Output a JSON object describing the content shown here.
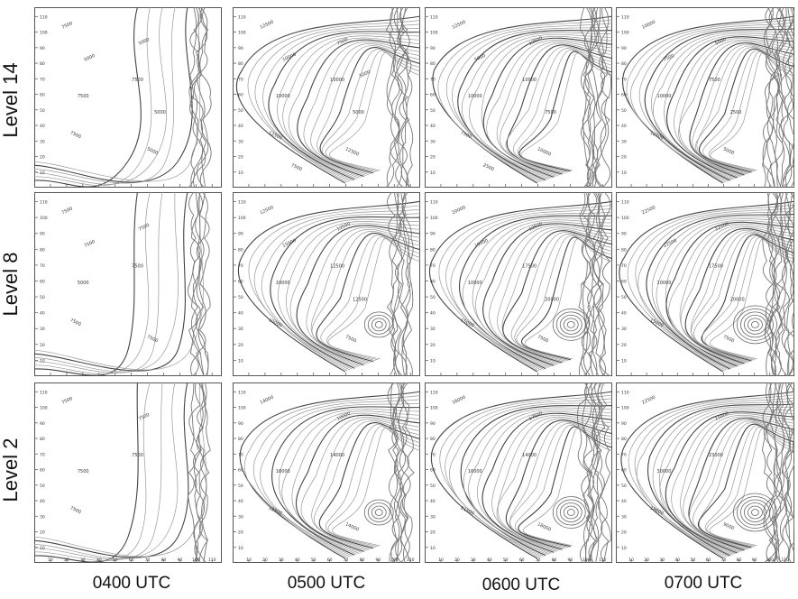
{
  "rows": [
    {
      "label": "Level 14"
    },
    {
      "label": "Level 8"
    },
    {
      "label": "Level 2"
    }
  ],
  "columns": [
    {
      "label": "0400 UTC"
    },
    {
      "label": "0500 UTC"
    },
    {
      "label": "0600 UTC"
    },
    {
      "label": "0700 UTC"
    }
  ],
  "axis_ticks": [
    "10",
    "20",
    "30",
    "40",
    "50",
    "60",
    "70",
    "80",
    "90",
    "100",
    "110"
  ],
  "panels": [
    {
      "row": 0,
      "col": 0,
      "contour_labels": [
        "7500",
        "7500",
        "7500",
        "5000",
        "7500",
        "5000",
        "5000",
        "5000"
      ]
    },
    {
      "row": 0,
      "col": 1,
      "contour_labels": [
        "12500",
        "10000",
        "12500",
        "7500",
        "10000",
        "12500",
        "10000",
        "5000",
        "7500",
        "5000"
      ]
    },
    {
      "row": 0,
      "col": 2,
      "contour_labels": [
        "12500",
        "10000",
        "7500",
        "12500",
        "10000",
        "10000",
        "5000",
        "7500",
        "2500"
      ]
    },
    {
      "row": 0,
      "col": 3,
      "contour_labels": [
        "10000",
        "7500",
        "12500",
        "5000",
        "10000",
        "5000",
        "7500",
        "2500"
      ]
    },
    {
      "row": 1,
      "col": 0,
      "contour_labels": [
        "7500",
        "7500",
        "7500",
        "7500",
        "5000",
        "7500",
        "7500"
      ]
    },
    {
      "row": 1,
      "col": 1,
      "contour_labels": [
        "12500",
        "12500",
        "10000",
        "12500",
        "10000",
        "7500",
        "15000",
        "12500"
      ]
    },
    {
      "row": 1,
      "col": 2,
      "contour_labels": [
        "20000",
        "17500",
        "15000",
        "12500",
        "10000",
        "7500",
        "15000",
        "20000"
      ]
    },
    {
      "row": 1,
      "col": 3,
      "contour_labels": [
        "22500",
        "17500",
        "15000",
        "12500",
        "10000",
        "7500",
        "22500",
        "20000"
      ]
    },
    {
      "row": 2,
      "col": 0,
      "contour_labels": [
        "7500",
        "7500",
        "7500",
        "7500",
        "7500"
      ]
    },
    {
      "row": 2,
      "col": 1,
      "contour_labels": [
        "14000",
        "14000",
        "12500",
        "10000",
        "16000",
        "14000"
      ]
    },
    {
      "row": 2,
      "col": 2,
      "contour_labels": [
        "16000",
        "14000",
        "21500",
        "17500",
        "16000",
        "18000"
      ]
    },
    {
      "row": 2,
      "col": 3,
      "contour_labels": [
        "22500",
        "23000",
        "18000",
        "15000",
        "30000",
        "9000"
      ]
    }
  ]
}
